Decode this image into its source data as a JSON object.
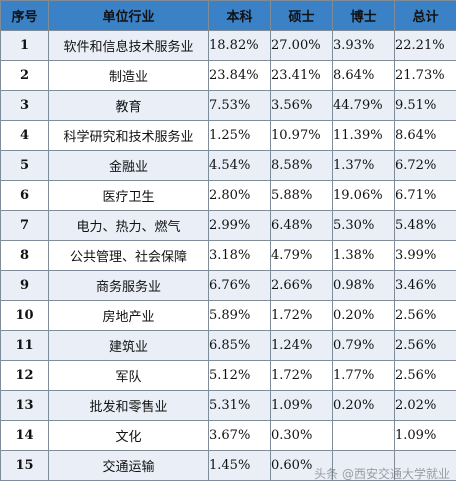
{
  "table": {
    "headers": [
      "序号",
      "单位行业",
      "本科",
      "硕士",
      "博士",
      "总计"
    ],
    "rows": [
      [
        "1",
        "软件和信息技术服务业",
        "18.82%",
        "27.00%",
        "3.93%",
        "22.21%"
      ],
      [
        "2",
        "制造业",
        "23.84%",
        "23.41%",
        "8.64%",
        "21.73%"
      ],
      [
        "3",
        "教育",
        "7.53%",
        "3.56%",
        "44.79%",
        "9.51%"
      ],
      [
        "4",
        "科学研究和技术服务业",
        "1.25%",
        "10.97%",
        "11.39%",
        "8.64%"
      ],
      [
        "5",
        "金融业",
        "4.54%",
        "8.58%",
        "1.37%",
        "6.72%"
      ],
      [
        "6",
        "医疗卫生",
        "2.80%",
        "5.88%",
        "19.06%",
        "6.71%"
      ],
      [
        "7",
        "电力、热力、燃气",
        "2.99%",
        "6.48%",
        "5.30%",
        "5.48%"
      ],
      [
        "8",
        "公共管理、社会保障",
        "3.18%",
        "4.79%",
        "1.38%",
        "3.99%"
      ],
      [
        "9",
        "商务服务业",
        "6.76%",
        "2.66%",
        "0.98%",
        "3.46%"
      ],
      [
        "10",
        "房地产业",
        "5.89%",
        "1.72%",
        "0.20%",
        "2.56%"
      ],
      [
        "11",
        "建筑业",
        "6.85%",
        "1.24%",
        "0.79%",
        "2.56%"
      ],
      [
        "12",
        "军队",
        "5.12%",
        "1.72%",
        "1.77%",
        "2.56%"
      ],
      [
        "13",
        "批发和零售业",
        "5.31%",
        "1.09%",
        "0.20%",
        "2.02%"
      ],
      [
        "14",
        "文化",
        "3.67%",
        "0.30%",
        "",
        "1.09%"
      ],
      [
        "15",
        "交通运输",
        "1.45%",
        "0.60%",
        "",
        ""
      ]
    ]
  },
  "watermark": "头条 @西安交通大学就业",
  "colors": {
    "header_bg": "#3a81c6",
    "row_alt_bg": "#e9eef7"
  }
}
